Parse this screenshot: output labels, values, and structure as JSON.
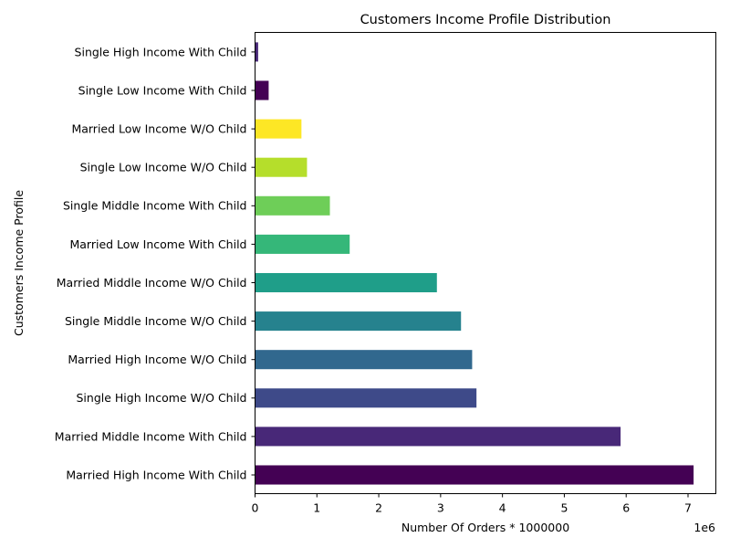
{
  "chart_data": {
    "type": "bar",
    "orientation": "horizontal",
    "title": "Customers Income Profile Distribution",
    "xlabel": "Number Of Orders * 1000000",
    "ylabel": "Customers Income Profile",
    "x_offset_label": "1e6",
    "xlim": [
      0,
      7.45
    ],
    "x_ticks": [
      0,
      1,
      2,
      3,
      4,
      5,
      6,
      7
    ],
    "grid": false,
    "categories": [
      "Married High Income With Child",
      "Married Middle Income With Child",
      "Single High Income W/O Child",
      "Married High Income W/O Child",
      "Single Middle Income W/O Child",
      "Married Middle Income W/O Child",
      "Married Low Income With Child",
      "Single Middle Income With Child",
      "Single Low Income W/O Child",
      "Married Low Income W/O Child",
      "Single Low Income With Child",
      "Single High Income With Child"
    ],
    "values": [
      7.09,
      5.91,
      3.58,
      3.51,
      3.33,
      2.94,
      1.53,
      1.21,
      0.84,
      0.75,
      0.22,
      0.05
    ],
    "colors": [
      "#440154",
      "#482878",
      "#3e4a89",
      "#31688e",
      "#26828e",
      "#1f9e89",
      "#35b779",
      "#6ece58",
      "#b5de2b",
      "#fde725",
      "#440154",
      "#482878"
    ]
  }
}
